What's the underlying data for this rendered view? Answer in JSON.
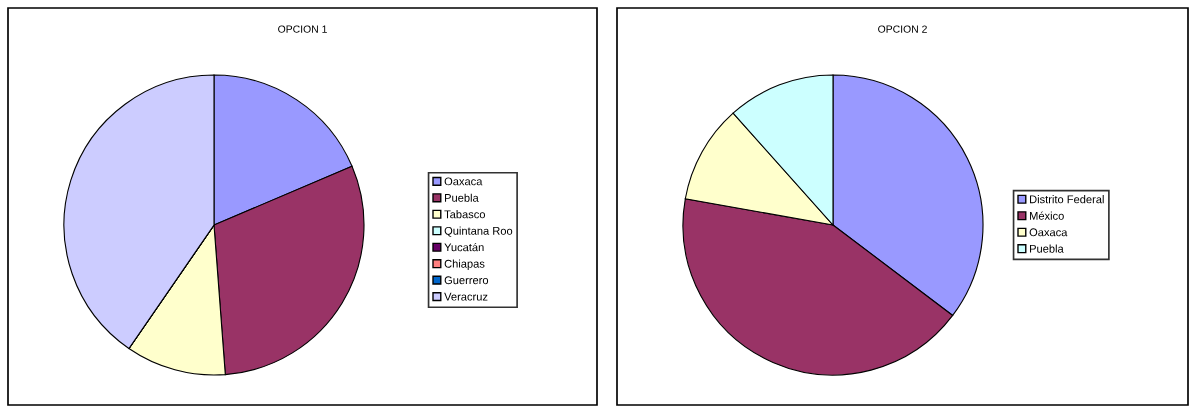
{
  "chart_data": [
    {
      "type": "pie",
      "title": "OPCION 1",
      "categories": [
        "Oaxaca",
        "Puebla",
        "Tabasco",
        "Quintana Roo",
        "Yucatán",
        "Chiapas",
        "Guerrero",
        "Veracruz"
      ],
      "values": [
        18.6,
        30.2,
        10.8,
        0,
        0,
        0,
        0,
        40.4
      ],
      "colors": [
        "#9999ff",
        "#993366",
        "#ffffcc",
        "#ccffff",
        "#660066",
        "#ff8080",
        "#0066cc",
        "#ccccff"
      ],
      "legend": "right"
    },
    {
      "type": "pie",
      "title": "OPCION 2",
      "categories": [
        "Distrito Federal",
        "México",
        "Oaxaca",
        "Puebla"
      ],
      "values": [
        35.3,
        42.5,
        10.6,
        11.6
      ],
      "colors": [
        "#9999ff",
        "#993366",
        "#ffffcc",
        "#ccffff"
      ],
      "legend": "right"
    }
  ]
}
